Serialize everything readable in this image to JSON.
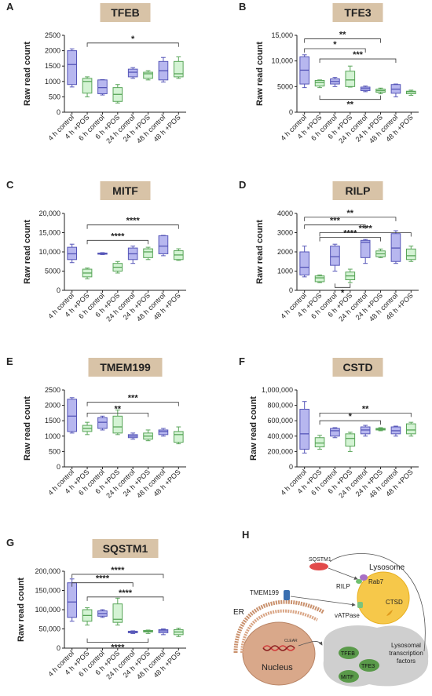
{
  "colors": {
    "control_fill": "#b7b7ef",
    "control_stroke": "#5656b8",
    "pos_fill": "#d4f3d4",
    "pos_stroke": "#58a558",
    "title_bg": "#d8c3a7",
    "axis": "#222222"
  },
  "chart_data": [
    {
      "type": "box",
      "panel": "A",
      "title": "TFEB",
      "ylabel": "Raw read count",
      "ylim": [
        0,
        2500
      ],
      "yticks": [
        "0",
        "500",
        "1000",
        "1500",
        "2000",
        "2500"
      ],
      "categories": [
        "4 h control",
        "4 h +POS",
        "6 h control",
        "6 h +POS",
        "24 h control",
        "24 h +POS",
        "48 h control",
        "48 h +POS"
      ],
      "boxes": [
        {
          "min": 820,
          "q1": 900,
          "median": 1550,
          "q3": 2000,
          "max": 2060
        },
        {
          "min": 500,
          "q1": 620,
          "median": 1000,
          "q3": 1100,
          "max": 1150
        },
        {
          "min": 560,
          "q1": 600,
          "median": 800,
          "q3": 1050,
          "max": 1060
        },
        {
          "min": 300,
          "q1": 350,
          "median": 580,
          "q3": 800,
          "max": 900
        },
        {
          "min": 1100,
          "q1": 1150,
          "median": 1300,
          "q3": 1400,
          "max": 1450
        },
        {
          "min": 1050,
          "q1": 1100,
          "median": 1250,
          "q3": 1300,
          "max": 1350
        },
        {
          "min": 980,
          "q1": 1050,
          "median": 1350,
          "q3": 1650,
          "max": 1780
        },
        {
          "min": 1100,
          "q1": 1150,
          "median": 1250,
          "q3": 1650,
          "max": 1800
        }
      ],
      "brackets": [
        {
          "from": 1,
          "to": 7,
          "label": "*",
          "level": 2250
        }
      ]
    },
    {
      "type": "box",
      "panel": "B",
      "title": "TFE3",
      "ylabel": "Raw read count",
      "ylim": [
        0,
        15000
      ],
      "yticks": [
        "0",
        "5000",
        "10,000",
        "15,000"
      ],
      "categories": [
        "4 h control",
        "4 h +POS",
        "6 h control",
        "6 h +POS",
        "24 h control",
        "24 h +POS",
        "48 h control",
        "48 h +POS"
      ],
      "boxes": [
        {
          "min": 4800,
          "q1": 5500,
          "median": 8200,
          "q3": 10800,
          "max": 11200
        },
        {
          "min": 4800,
          "q1": 5100,
          "median": 5800,
          "q3": 6200,
          "max": 6300
        },
        {
          "min": 5000,
          "q1": 5500,
          "median": 6000,
          "q3": 6500,
          "max": 6800
        },
        {
          "min": 4900,
          "q1": 5000,
          "median": 6300,
          "q3": 8000,
          "max": 9000
        },
        {
          "min": 4000,
          "q1": 4200,
          "median": 4600,
          "q3": 4900,
          "max": 5100
        },
        {
          "min": 3600,
          "q1": 3900,
          "median": 4200,
          "q3": 4500,
          "max": 4700
        },
        {
          "min": 3000,
          "q1": 3700,
          "median": 4500,
          "q3": 5400,
          "max": 5500
        },
        {
          "min": 3300,
          "q1": 3600,
          "median": 4000,
          "q3": 4100,
          "max": 4300
        }
      ],
      "brackets": [
        {
          "from": 0,
          "to": 5,
          "label": "**",
          "level": 14300
        },
        {
          "from": 0,
          "to": 4,
          "label": "*",
          "level": 12400
        },
        {
          "from": 1,
          "to": 6,
          "label": "***",
          "level": 10400
        },
        {
          "from": 1,
          "to": 5,
          "label": "**",
          "level": 2500,
          "below": true
        }
      ]
    },
    {
      "type": "box",
      "panel": "C",
      "title": "MITF",
      "ylabel": "Raw read count",
      "ylim": [
        0,
        20000
      ],
      "yticks": [
        "0",
        "5000",
        "10,000",
        "15,000",
        "20,000"
      ],
      "categories": [
        "4 h control",
        "4 h +POS",
        "6 h control",
        "6 h +POS",
        "24 h control",
        "24 h +POS",
        "48 h control",
        "48 h +POS"
      ],
      "boxes": [
        {
          "min": 7200,
          "q1": 8000,
          "median": 9500,
          "q3": 11200,
          "max": 12000
        },
        {
          "min": 3000,
          "q1": 3500,
          "median": 4500,
          "q3": 5500,
          "max": 5800
        },
        {
          "min": 9300,
          "q1": 9400,
          "median": 9500,
          "q3": 9700,
          "max": 9800
        },
        {
          "min": 4500,
          "q1": 5000,
          "median": 6000,
          "q3": 7000,
          "max": 7500
        },
        {
          "min": 7000,
          "q1": 8000,
          "median": 9500,
          "q3": 11000,
          "max": 11500
        },
        {
          "min": 8000,
          "q1": 8500,
          "median": 10000,
          "q3": 10800,
          "max": 11200
        },
        {
          "min": 9000,
          "q1": 9500,
          "median": 11500,
          "q3": 14200,
          "max": 14300
        },
        {
          "min": 7800,
          "q1": 8000,
          "median": 9200,
          "q3": 10300,
          "max": 10800
        }
      ],
      "brackets": [
        {
          "from": 1,
          "to": 7,
          "label": "****",
          "level": 17000
        },
        {
          "from": 1,
          "to": 5,
          "label": "****",
          "level": 13000
        }
      ]
    },
    {
      "type": "box",
      "panel": "D",
      "title": "RILP",
      "ylabel": "Raw read count",
      "ylim": [
        0,
        4000
      ],
      "yticks": [
        "0",
        "1000",
        "2000",
        "3000",
        "4000"
      ],
      "categories": [
        "4 h control",
        "4 h +POS",
        "6 h control",
        "6 h +POS",
        "24 h control",
        "24 h +POS",
        "48 h control",
        "48 h +POS"
      ],
      "boxes": [
        {
          "min": 700,
          "q1": 800,
          "median": 1200,
          "q3": 2000,
          "max": 2300
        },
        {
          "min": 400,
          "q1": 450,
          "median": 650,
          "q3": 750,
          "max": 800
        },
        {
          "min": 1000,
          "q1": 1300,
          "median": 1750,
          "q3": 2300,
          "max": 2400
        },
        {
          "min": 400,
          "q1": 550,
          "median": 750,
          "q3": 950,
          "max": 1100
        },
        {
          "min": 1400,
          "q1": 1700,
          "median": 2500,
          "q3": 2600,
          "max": 2650
        },
        {
          "min": 1700,
          "q1": 1750,
          "median": 1900,
          "q3": 2050,
          "max": 2150
        },
        {
          "min": 1400,
          "q1": 1500,
          "median": 2200,
          "q3": 2950,
          "max": 3100
        },
        {
          "min": 1500,
          "q1": 1600,
          "median": 1800,
          "q3": 2150,
          "max": 2300
        }
      ],
      "brackets": [
        {
          "from": 0,
          "to": 6,
          "label": "**",
          "level": 3800
        },
        {
          "from": 0,
          "to": 4,
          "label": "***",
          "level": 3400
        },
        {
          "from": 1,
          "to": 7,
          "label": "****",
          "level": 3000
        },
        {
          "from": 1,
          "to": 5,
          "label": "****",
          "level": 2750
        },
        {
          "from": 2,
          "to": 3,
          "label": "*",
          "level": 150,
          "below": true
        }
      ]
    },
    {
      "type": "box",
      "panel": "E",
      "title": "TMEM199",
      "ylabel": "Raw read count",
      "ylim": [
        0,
        2500
      ],
      "yticks": [
        "0",
        "500",
        "1000",
        "1500",
        "2000",
        "2500"
      ],
      "categories": [
        "4 h control",
        "4 h +POS",
        "6 h control",
        "6 h +POS",
        "24 h control",
        "24 h +POS",
        "48 h control",
        "48 h +POS"
      ],
      "boxes": [
        {
          "min": 1100,
          "q1": 1150,
          "median": 1650,
          "q3": 2200,
          "max": 2250
        },
        {
          "min": 1050,
          "q1": 1150,
          "median": 1250,
          "q3": 1350,
          "max": 1450
        },
        {
          "min": 1200,
          "q1": 1250,
          "median": 1450,
          "q3": 1600,
          "max": 1650
        },
        {
          "min": 1050,
          "q1": 1100,
          "median": 1300,
          "q3": 1650,
          "max": 1850
        },
        {
          "min": 900,
          "q1": 950,
          "median": 1000,
          "q3": 1050,
          "max": 1100
        },
        {
          "min": 850,
          "q1": 900,
          "median": 1000,
          "q3": 1100,
          "max": 1200
        },
        {
          "min": 1000,
          "q1": 1050,
          "median": 1150,
          "q3": 1200,
          "max": 1250
        },
        {
          "min": 750,
          "q1": 800,
          "median": 1050,
          "q3": 1150,
          "max": 1300
        }
      ],
      "brackets": [
        {
          "from": 1,
          "to": 7,
          "label": "***",
          "level": 2100
        },
        {
          "from": 1,
          "to": 5,
          "label": "**",
          "level": 1750
        }
      ]
    },
    {
      "type": "box",
      "panel": "F",
      "title": "CSTD",
      "ylabel": "Raw read count",
      "ylim": [
        0,
        1000000
      ],
      "yticks": [
        "0",
        "200,000",
        "400,000",
        "600,000",
        "800,000",
        "1,000,000"
      ],
      "categories": [
        "4 h control",
        "4 h +POS",
        "6 h control",
        "6 h +POS",
        "24 h control",
        "24 h +POS",
        "48 h control",
        "48 h +POS"
      ],
      "boxes": [
        {
          "min": 180000,
          "q1": 230000,
          "median": 430000,
          "q3": 750000,
          "max": 850000
        },
        {
          "min": 230000,
          "q1": 260000,
          "median": 310000,
          "q3": 380000,
          "max": 410000
        },
        {
          "min": 380000,
          "q1": 400000,
          "median": 470000,
          "q3": 500000,
          "max": 510000
        },
        {
          "min": 200000,
          "q1": 270000,
          "median": 370000,
          "q3": 430000,
          "max": 450000
        },
        {
          "min": 400000,
          "q1": 430000,
          "median": 480000,
          "q3": 520000,
          "max": 540000
        },
        {
          "min": 470000,
          "q1": 480000,
          "median": 490000,
          "q3": 500000,
          "max": 510000
        },
        {
          "min": 400000,
          "q1": 430000,
          "median": 470000,
          "q3": 520000,
          "max": 530000
        },
        {
          "min": 400000,
          "q1": 430000,
          "median": 480000,
          "q3": 560000,
          "max": 580000
        }
      ],
      "brackets": [
        {
          "from": 1,
          "to": 7,
          "label": "**",
          "level": 700000
        },
        {
          "from": 1,
          "to": 5,
          "label": "*",
          "level": 600000
        }
      ]
    },
    {
      "type": "box",
      "panel": "G",
      "title": "SQSTM1",
      "ylabel": "Raw read count",
      "ylim": [
        0,
        200000
      ],
      "yticks": [
        "0",
        "50,000",
        "100,000",
        "150,000",
        "200,000"
      ],
      "categories": [
        "4 h control",
        "4 h +POS",
        "6 h control",
        "6 h +POS",
        "24 h control",
        "24 h +POS",
        "48 h control",
        "48 h +POS"
      ],
      "boxes": [
        {
          "min": 70000,
          "q1": 80000,
          "median": 120000,
          "q3": 170000,
          "max": 180000
        },
        {
          "min": 60000,
          "q1": 70000,
          "median": 85000,
          "q3": 100000,
          "max": 105000
        },
        {
          "min": 80000,
          "q1": 83000,
          "median": 90000,
          "q3": 97000,
          "max": 100000
        },
        {
          "min": 60000,
          "q1": 67000,
          "median": 75000,
          "q3": 115000,
          "max": 130000
        },
        {
          "min": 38000,
          "q1": 40000,
          "median": 42000,
          "q3": 44000,
          "max": 45000
        },
        {
          "min": 38000,
          "q1": 42000,
          "median": 44000,
          "q3": 46000,
          "max": 47000
        },
        {
          "min": 35000,
          "q1": 40000,
          "median": 45000,
          "q3": 48000,
          "max": 50000
        },
        {
          "min": 30000,
          "q1": 35000,
          "median": 42000,
          "q3": 48000,
          "max": 52000
        }
      ],
      "brackets": [
        {
          "from": 0,
          "to": 6,
          "label": "****",
          "level": 192000
        },
        {
          "from": 0,
          "to": 4,
          "label": "****",
          "level": 170000
        },
        {
          "from": 1,
          "to": 6,
          "label": "****",
          "level": 133000
        },
        {
          "from": 1,
          "to": 5,
          "label": "****",
          "level": 15000,
          "below": true
        }
      ]
    }
  ],
  "diagram": {
    "panel": "H",
    "labels": {
      "sqstm1": "SQSTM1",
      "lysosome": "Lysosome",
      "rab7": "Rab7",
      "rilp": "RILP",
      "tmem199": "TMEM199",
      "vatpase": "vATPase",
      "ctsd": "CTSD",
      "er": "ER",
      "nucleus": "Nucleus",
      "clear": "CLEAR",
      "tfeb": "TFEB",
      "tfe3": "TFE3",
      "mitf": "MITF",
      "tf_group": "Lysosomal transcription factors"
    }
  }
}
